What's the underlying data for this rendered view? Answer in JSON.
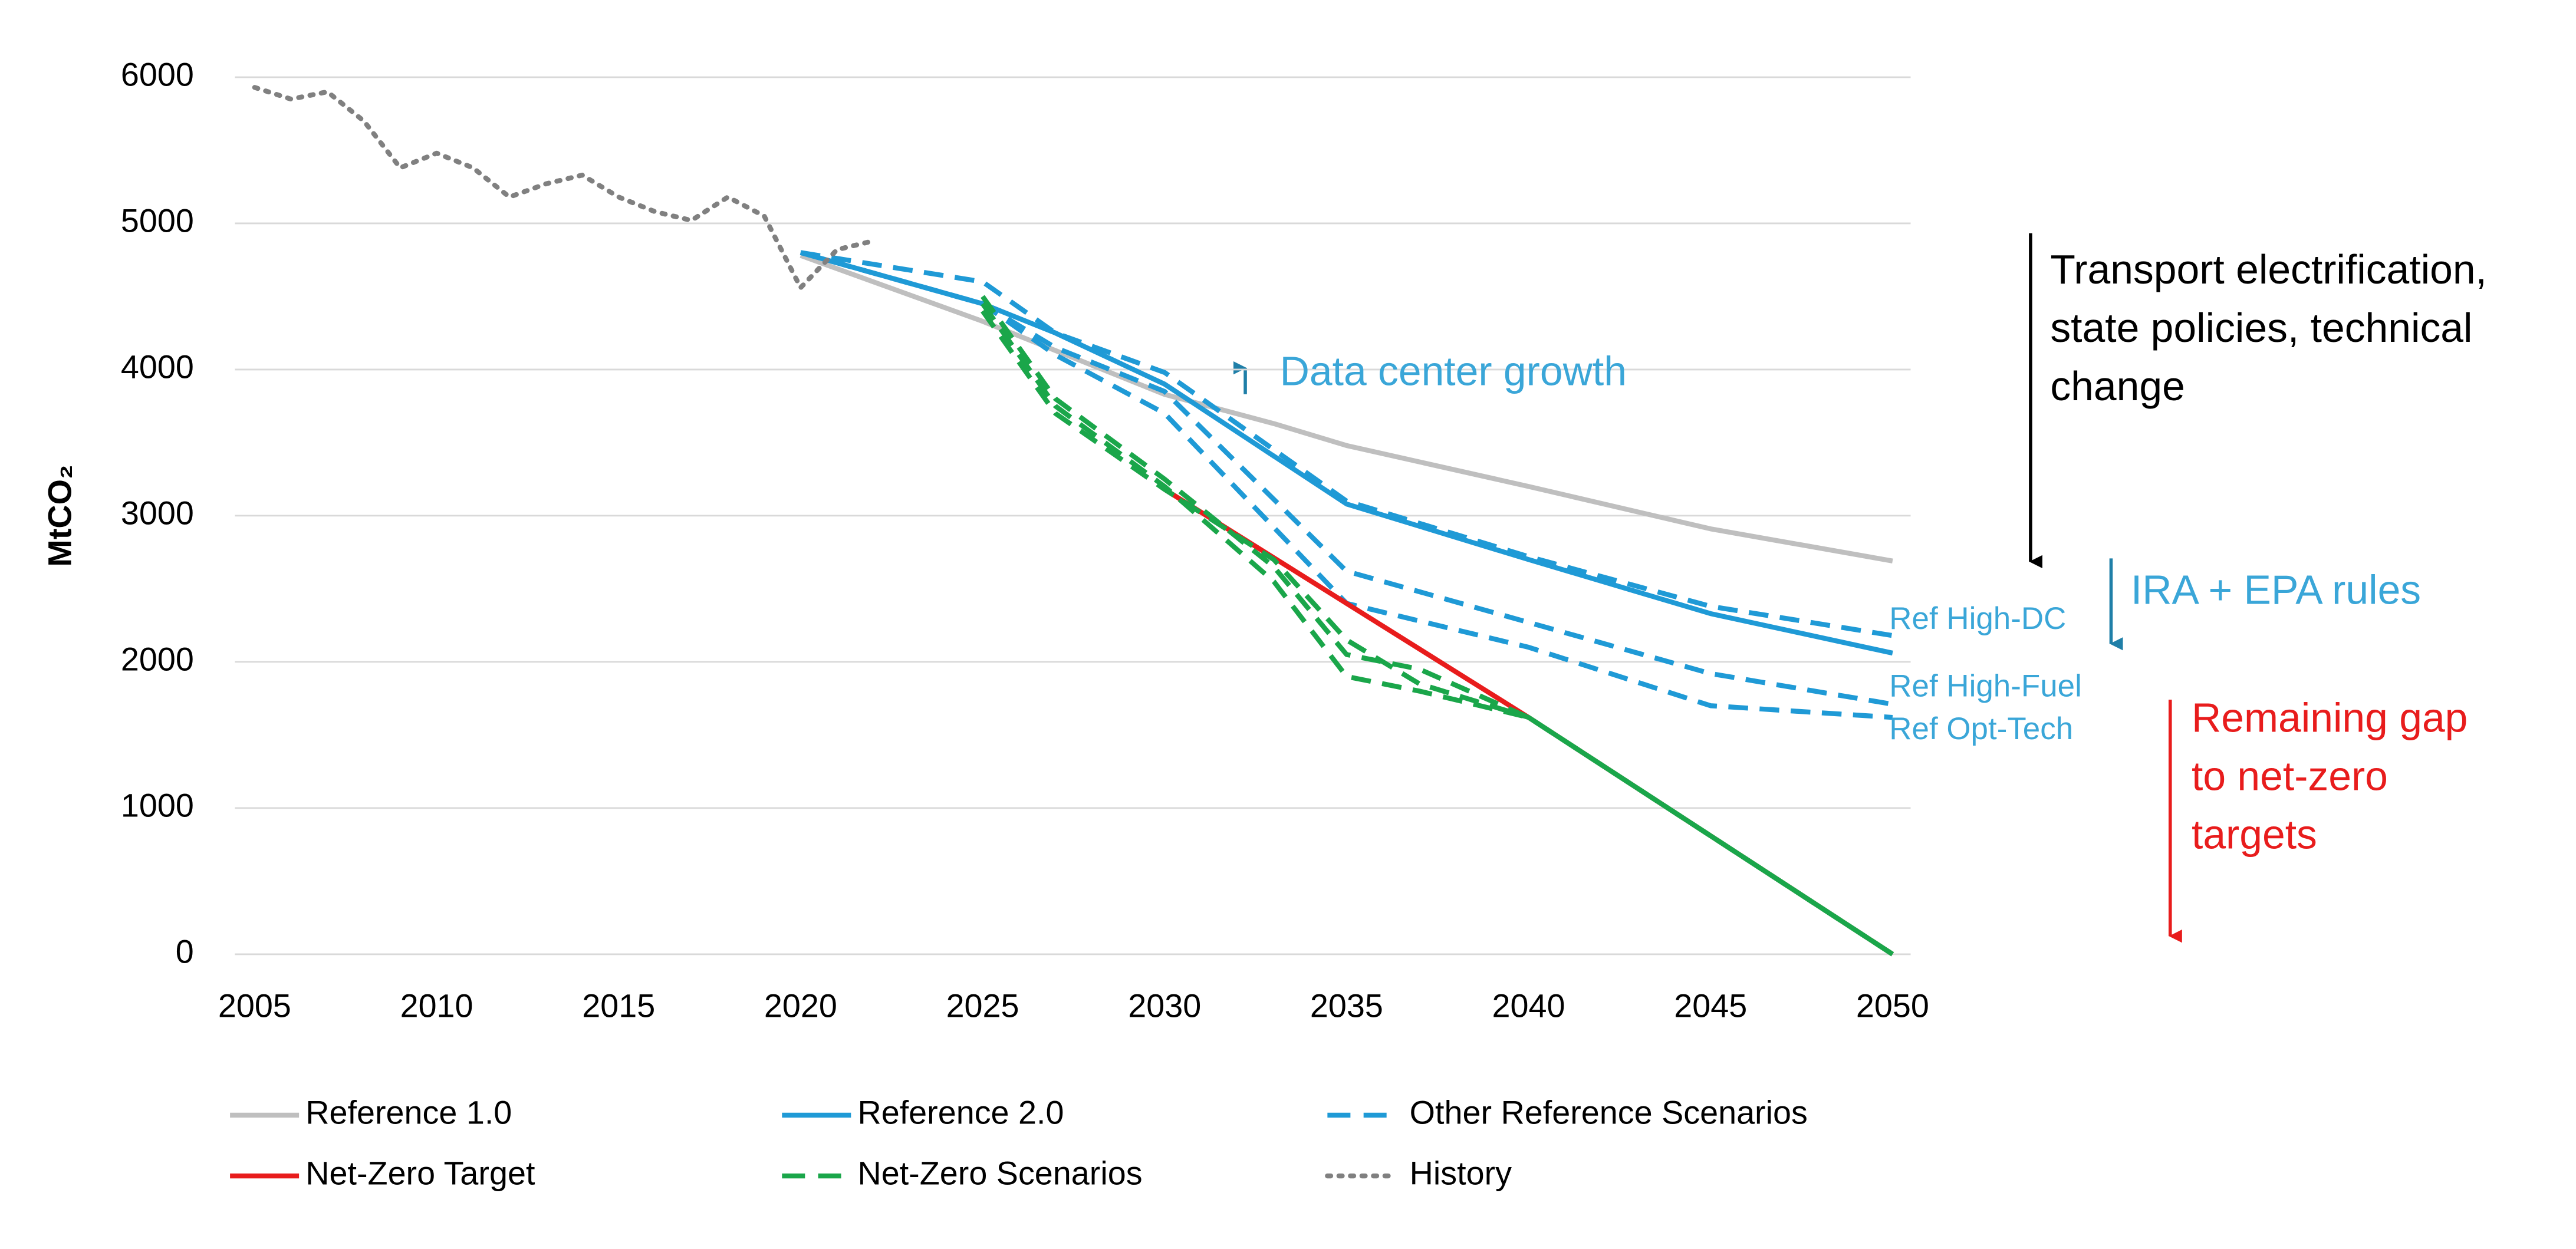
{
  "chart_data": {
    "type": "line",
    "ylabel": "MtCO₂",
    "xlim": [
      2005,
      2050
    ],
    "ylim": [
      0,
      6000
    ],
    "xticks": [
      2005,
      2010,
      2015,
      2020,
      2025,
      2030,
      2035,
      2040,
      2045,
      2050
    ],
    "yticks": [
      0,
      1000,
      2000,
      3000,
      4000,
      5000,
      6000
    ],
    "grid": true,
    "legend": "bottom",
    "series": [
      {
        "name": "Reference 1.0",
        "color": "#bfbfbf",
        "dash": "solid",
        "x": [
          2020,
          2025,
          2030,
          2033,
          2035,
          2040,
          2045,
          2050
        ],
        "values": [
          4780,
          4330,
          3830,
          3630,
          3480,
          3200,
          2910,
          2690
        ]
      },
      {
        "name": "Reference 2.0",
        "color": "#1f9ad6",
        "dash": "solid",
        "x": [
          2020,
          2025,
          2027,
          2030,
          2035,
          2040,
          2045,
          2050
        ],
        "values": [
          4800,
          4450,
          4250,
          3900,
          3080,
          2700,
          2330,
          2060
        ]
      },
      {
        "name": "Other Reference Scenarios",
        "label": "Ref High-DC",
        "color": "#1f9ad6",
        "dash": "dashed",
        "x": [
          2020,
          2025,
          2027,
          2030,
          2035,
          2040,
          2045,
          2050
        ],
        "values": [
          4800,
          4600,
          4250,
          3980,
          3100,
          2720,
          2380,
          2180
        ]
      },
      {
        "name": "Other Reference Scenarios",
        "label": "Ref High-Fuel",
        "color": "#1f9ad6",
        "dash": "dashed",
        "x": [
          2020,
          2025,
          2027,
          2030,
          2035,
          2040,
          2045,
          2050
        ],
        "values": [
          4800,
          4450,
          4150,
          3850,
          2620,
          2270,
          1920,
          1710
        ]
      },
      {
        "name": "Other Reference Scenarios",
        "label": "Ref Opt-Tech",
        "color": "#1f9ad6",
        "dash": "dashed",
        "x": [
          2020,
          2025,
          2027,
          2030,
          2035,
          2040,
          2045,
          2050
        ],
        "values": [
          4800,
          4450,
          4100,
          3700,
          2400,
          2100,
          1700,
          1620
        ]
      },
      {
        "name": "Net-Zero Target",
        "color": "#e81c1c",
        "dash": "solid",
        "x": [
          2030,
          2040,
          2050
        ],
        "values": [
          3180,
          1620,
          0
        ]
      },
      {
        "name": "Net-Zero Scenarios",
        "color": "#1aa64a",
        "dash": "dashed",
        "x": [
          2025,
          2027,
          2030,
          2033,
          2035,
          2037,
          2040,
          2045,
          2050
        ],
        "values": [
          4500,
          3800,
          3250,
          2650,
          2050,
          1950,
          1620,
          810,
          0
        ]
      },
      {
        "name": "Net-Zero Scenarios",
        "color": "#1aa64a",
        "dash": "dashed",
        "x": [
          2025,
          2027,
          2030,
          2033,
          2035,
          2037,
          2040,
          2045,
          2050
        ],
        "values": [
          4450,
          3750,
          3200,
          2550,
          1900,
          1800,
          1620,
          810,
          0
        ]
      },
      {
        "name": "Net-Zero Scenarios",
        "color": "#1aa64a",
        "dash": "dashed",
        "x": [
          2025,
          2027,
          2030,
          2033,
          2035,
          2037,
          2040,
          2045,
          2050
        ],
        "values": [
          4400,
          3700,
          3180,
          2700,
          2150,
          1850,
          1620,
          810,
          0
        ]
      },
      {
        "name": "History",
        "color": "#808080",
        "dash": "dotted",
        "x": [
          2005,
          2006,
          2007,
          2008,
          2009,
          2010,
          2011,
          2012,
          2013,
          2014,
          2015,
          2016,
          2017,
          2018,
          2019,
          2020,
          2021,
          2022
        ],
        "values": [
          5930,
          5850,
          5900,
          5700,
          5380,
          5480,
          5380,
          5180,
          5270,
          5330,
          5180,
          5080,
          5020,
          5180,
          5050,
          4560,
          4820,
          4880
        ]
      }
    ],
    "annotations": [
      {
        "lines": [
          "Data center growth"
        ],
        "color": "#3aa6d8"
      },
      {
        "lines": [
          "Transport electrification,",
          "state policies, technical",
          "change"
        ],
        "color": "#000000"
      },
      {
        "lines": [
          "IRA + EPA rules"
        ],
        "color": "#3aa6d8"
      },
      {
        "lines": [
          "Remaining gap",
          "to net-zero",
          "targets"
        ],
        "color": "#e81c1c"
      }
    ]
  }
}
